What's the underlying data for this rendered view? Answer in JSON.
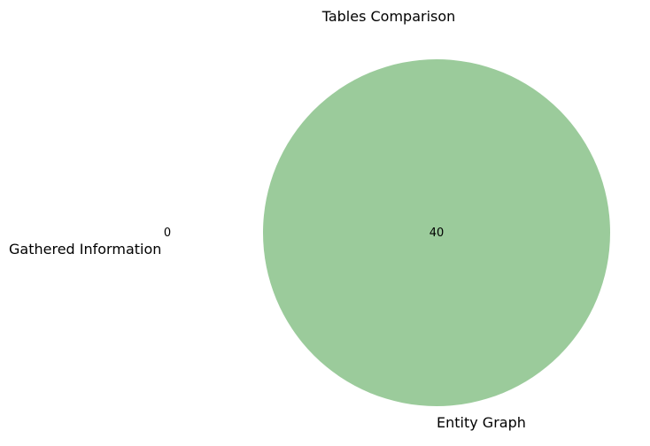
{
  "chart_data": {
    "type": "venn",
    "title": "Tables Comparison",
    "sets": [
      {
        "name": "Gathered Information",
        "count": 0,
        "color": "#ff0000"
      },
      {
        "name": "Entity Graph",
        "count": 40,
        "color": "#9bcb9b"
      }
    ],
    "overlap_count": 0,
    "total_only_counts": [
      0,
      40
    ]
  }
}
